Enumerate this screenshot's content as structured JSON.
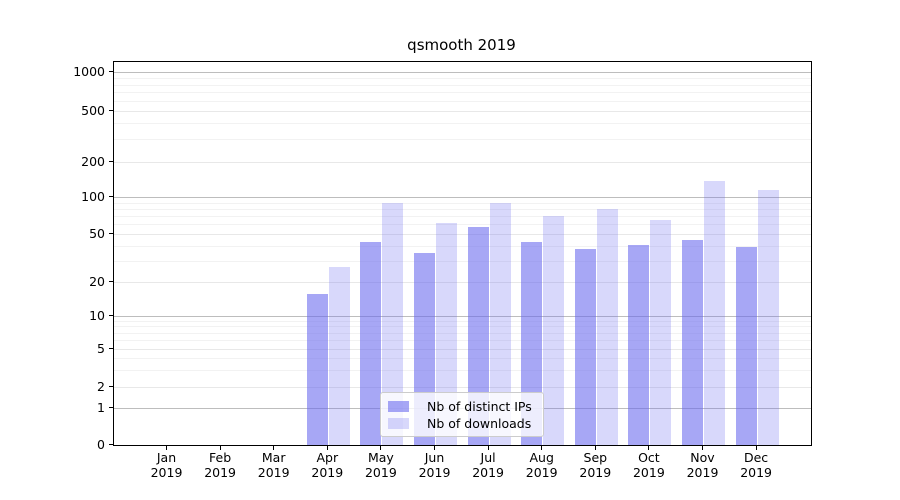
{
  "chart_data": {
    "type": "bar",
    "title": "qsmooth 2019",
    "categories": [
      "Jan 2019",
      "Feb 2019",
      "Mar 2019",
      "Apr 2019",
      "May 2019",
      "Jun 2019",
      "Jul 2019",
      "Aug 2019",
      "Sep 2019",
      "Oct 2019",
      "Nov 2019",
      "Dec 2019"
    ],
    "series": [
      {
        "name": "Nb of distinct IPs",
        "color": "rgba(104,104,238,0.58)",
        "values": [
          0,
          0,
          0,
          16,
          43,
          35,
          57,
          43,
          38,
          41,
          45,
          39
        ]
      },
      {
        "name": "Nb of downloads",
        "color": "rgba(104,104,238,0.26)",
        "values": [
          0,
          0,
          0,
          27,
          91,
          62,
          91,
          71,
          81,
          66,
          137,
          116
        ]
      }
    ],
    "xlabel": "",
    "ylabel": "",
    "y_axis": {
      "scale": "symlog",
      "tick_values": [
        0,
        1,
        2,
        5,
        10,
        20,
        50,
        100,
        200,
        500,
        1000
      ]
    },
    "grid": true,
    "legend_position": "lower center"
  }
}
